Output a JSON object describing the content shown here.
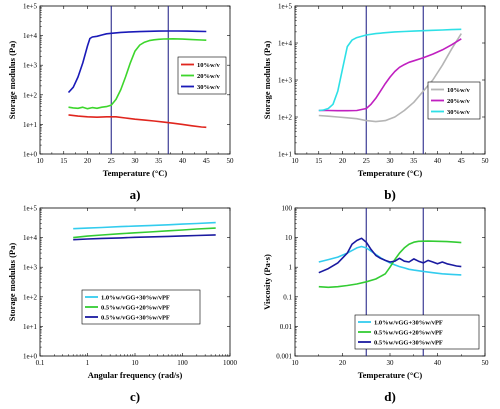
{
  "panels": [
    {
      "label": "a)",
      "xlabel": "Temperature (°C)",
      "ylabel": "Storage modulus (Pa)",
      "xscale": "linear",
      "yscale": "log",
      "xlim": [
        10,
        50
      ],
      "ylim_exp": [
        0,
        5
      ],
      "xticks": [
        "10",
        "15",
        "20",
        "25",
        "30",
        "35",
        "40",
        "45",
        "50"
      ],
      "yticks": [
        "1e+0",
        "1e+1",
        "1e+2",
        "1e+3",
        "1e+4",
        "1e+5"
      ],
      "vlines": [
        25,
        37
      ],
      "vline_color": "#2a2a8c",
      "legend_position": "center-right",
      "series": [
        {
          "name": "10%w/v",
          "color": "#e0261e",
          "x": [
            16,
            18,
            20,
            22,
            24,
            26,
            28,
            30,
            32,
            34,
            36,
            38,
            40,
            42,
            44,
            45
          ],
          "y": [
            21,
            19,
            18,
            17.5,
            18,
            18,
            16.5,
            15,
            14,
            13,
            12,
            11,
            10,
            9,
            8.2,
            8
          ]
        },
        {
          "name": "20%w/v",
          "color": "#3dd62c",
          "x": [
            16,
            17,
            18,
            19,
            20,
            21,
            22,
            23,
            24,
            25,
            26,
            27,
            28,
            29,
            30,
            31,
            32,
            33,
            34,
            35,
            36,
            38,
            40,
            42,
            44,
            45
          ],
          "y": [
            38,
            36,
            35,
            38,
            34,
            37,
            35,
            38,
            40,
            45,
            70,
            150,
            400,
            1200,
            3000,
            4800,
            6000,
            6800,
            7200,
            7500,
            7700,
            7800,
            7600,
            7300,
            7100,
            7000
          ]
        },
        {
          "name": "30%w/v",
          "color": "#1a1ab8",
          "x": [
            16,
            17,
            18,
            19,
            20,
            20.5,
            21,
            22,
            23,
            24,
            25,
            27,
            29,
            31,
            33,
            35,
            37,
            39,
            41,
            43,
            45
          ],
          "y": [
            120,
            180,
            400,
            1200,
            4500,
            8000,
            9000,
            9500,
            10500,
            11500,
            12000,
            12800,
            13300,
            13700,
            14000,
            14200,
            14300,
            14300,
            14200,
            14000,
            13800
          ]
        }
      ]
    },
    {
      "label": "b)",
      "xlabel": "Temperature (°C)",
      "ylabel": "Storage modulus (Pa)",
      "xscale": "linear",
      "yscale": "log",
      "xlim": [
        10,
        50
      ],
      "ylim_exp": [
        1,
        5
      ],
      "xticks": [
        "10",
        "15",
        "20",
        "25",
        "30",
        "35",
        "40",
        "45",
        "50"
      ],
      "yticks": [
        "1e+1",
        "1e+2",
        "1e+3",
        "1e+4",
        "1e+5"
      ],
      "vlines": [
        25,
        37
      ],
      "vline_color": "#2a2a8c",
      "legend_position": "center-right",
      "series": [
        {
          "name": "10%w/v",
          "color": "#b5b5b5",
          "x": [
            15,
            17,
            19,
            21,
            23,
            25,
            27,
            29,
            31,
            33,
            35,
            37,
            39,
            41,
            43,
            45
          ],
          "y": [
            110,
            105,
            100,
            95,
            90,
            80,
            75,
            80,
            100,
            150,
            250,
            500,
            1000,
            2500,
            7000,
            18000
          ]
        },
        {
          "name": "20%w/v",
          "color": "#c020c0",
          "x": [
            15,
            17,
            19,
            21,
            23,
            25,
            26,
            27,
            28,
            29,
            30,
            31,
            32,
            33,
            34,
            35,
            37,
            39,
            41,
            43,
            45
          ],
          "y": [
            150,
            150,
            148,
            148,
            150,
            170,
            220,
            320,
            500,
            800,
            1200,
            1700,
            2200,
            2600,
            3000,
            3300,
            4000,
            5000,
            6500,
            9000,
            13000
          ]
        },
        {
          "name": "30%w/v",
          "color": "#2ee0e6",
          "x": [
            15,
            16,
            17,
            18,
            19,
            20,
            21,
            22,
            23,
            25,
            27,
            29,
            31,
            33,
            35,
            37,
            39,
            41,
            43,
            45
          ],
          "y": [
            150,
            155,
            170,
            220,
            500,
            2000,
            8000,
            12000,
            14000,
            16500,
            18000,
            19000,
            20000,
            20500,
            21000,
            21500,
            22000,
            22500,
            23000,
            23500
          ]
        }
      ]
    },
    {
      "label": "c)",
      "xlabel": "Angular frequency (rad/s)",
      "ylabel": "Storage modulus (Pa)",
      "xscale": "log",
      "yscale": "log",
      "xlim_exp": [
        -1,
        3
      ],
      "ylim_exp": [
        0,
        5
      ],
      "xticks": [
        "0.1",
        "1",
        "10",
        "100",
        "1000"
      ],
      "yticks": [
        "1e+0",
        "1e+1",
        "1e+2",
        "1e+3",
        "1e+4",
        "1e+5"
      ],
      "vlines": [],
      "legend_position": "lower-left",
      "series": [
        {
          "name": "1.0%w/vGG+30%w/vPF",
          "color": "#33ccee",
          "x": [
            0.5,
            1,
            2,
            5,
            10,
            20,
            50,
            100,
            200,
            500
          ],
          "y": [
            20000,
            21000,
            22000,
            23500,
            24500,
            25500,
            27000,
            28500,
            30000,
            32000
          ]
        },
        {
          "name": "0.5%w/vGG+20%w/vPF",
          "color": "#33cc33",
          "x": [
            0.5,
            1,
            2,
            5,
            10,
            20,
            50,
            100,
            200,
            500
          ],
          "y": [
            10000,
            11200,
            12200,
            13500,
            14500,
            15500,
            17000,
            18000,
            19500,
            21000
          ]
        },
        {
          "name": "0.5%w/vGG+30%w/vPF",
          "color": "#1a1aa0",
          "x": [
            0.5,
            1,
            2,
            5,
            10,
            20,
            50,
            100,
            200,
            500
          ],
          "y": [
            8500,
            9000,
            9400,
            9800,
            10200,
            10600,
            11000,
            11400,
            11800,
            12300
          ]
        }
      ]
    },
    {
      "label": "d)",
      "xlabel": "Temperature (°C)",
      "ylabel": "Viscosity (Pa·s)",
      "xscale": "linear",
      "yscale": "log",
      "xlim": [
        10,
        50
      ],
      "ylim_exp": [
        -3,
        2
      ],
      "xticks": [
        "10",
        "20",
        "30",
        "40",
        "50"
      ],
      "yticks": [
        "0.001",
        "0.01",
        "0.1",
        "1",
        "10",
        "100"
      ],
      "vlines": [
        25,
        37
      ],
      "vline_color": "#2a2a8c",
      "legend_position": "lower-right",
      "series": [
        {
          "name": "1.0%w/vGG+30%w/vPF",
          "color": "#33ccee",
          "x": [
            15,
            17,
            19,
            21,
            23,
            24,
            25,
            26,
            27,
            28,
            29,
            30,
            31,
            32,
            33,
            34,
            35,
            37,
            39,
            41,
            43,
            45
          ],
          "y": [
            1.5,
            1.8,
            2.2,
            3,
            4.5,
            5,
            4.5,
            3.5,
            2.7,
            2.1,
            1.7,
            1.4,
            1.2,
            1.05,
            0.95,
            0.85,
            0.8,
            0.72,
            0.65,
            0.6,
            0.57,
            0.55
          ]
        },
        {
          "name": "0.5%w/vGG+20%w/vPF",
          "color": "#33cc33",
          "x": [
            15,
            17,
            19,
            21,
            23,
            25,
            27,
            29,
            30,
            31,
            32,
            33,
            34,
            35,
            36,
            38,
            40,
            42,
            44,
            45
          ],
          "y": [
            0.22,
            0.21,
            0.22,
            0.24,
            0.27,
            0.32,
            0.4,
            0.6,
            1,
            1.8,
            3,
            4.5,
            6,
            7,
            7.5,
            7.6,
            7.5,
            7.3,
            7,
            6.8
          ]
        },
        {
          "name": "0.5%w/vGG+30%w/vPF",
          "color": "#1a1aa0",
          "x": [
            15,
            17,
            19,
            21,
            22,
            23,
            24,
            25,
            26,
            27,
            28,
            29,
            30,
            31,
            32,
            33,
            34,
            35,
            36,
            37,
            38,
            39,
            40,
            41,
            42,
            43,
            44,
            45
          ],
          "y": [
            0.65,
            0.9,
            1.4,
            3,
            6,
            8,
            9.5,
            7,
            4,
            2.5,
            2,
            1.7,
            1.5,
            1.6,
            2,
            1.6,
            1.5,
            1.9,
            1.6,
            1.4,
            1.7,
            1.5,
            1.3,
            1.5,
            1.3,
            1.2,
            1.1,
            1.05
          ]
        }
      ]
    }
  ]
}
